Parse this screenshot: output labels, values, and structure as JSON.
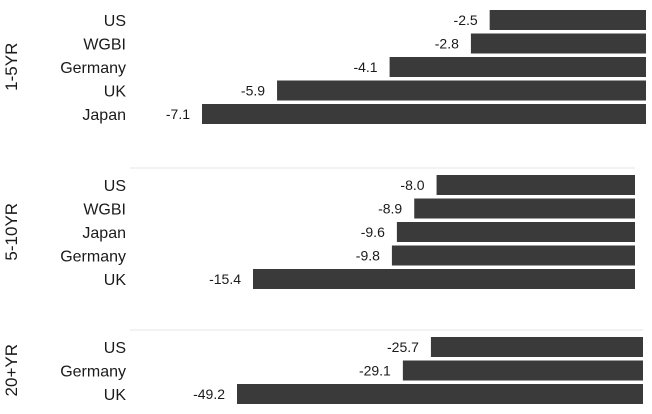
{
  "chart_data": {
    "type": "bar",
    "orientation": "horizontal",
    "groups": [
      {
        "label": "1-5YR",
        "categories": [
          "US",
          "WGBI",
          "Germany",
          "UK",
          "Japan"
        ],
        "values": [
          -2.5,
          -2.8,
          -4.1,
          -5.9,
          -7.1
        ],
        "value_labels": [
          "-2.5",
          "-2.8",
          "-4.1",
          "-5.9",
          "-7.1"
        ]
      },
      {
        "label": "5-10YR",
        "categories": [
          "US",
          "WGBI",
          "Japan",
          "Germany",
          "UK"
        ],
        "values": [
          -8.0,
          -8.9,
          -9.6,
          -9.8,
          -15.4
        ],
        "value_labels": [
          "-8.0",
          "-8.9",
          "-9.6",
          "-9.8",
          "-15.4"
        ]
      },
      {
        "label": "20+YR",
        "categories": [
          "US",
          "Germany",
          "UK"
        ],
        "values": [
          -25.7,
          -29.1,
          -49.2
        ],
        "value_labels": [
          "-25.7",
          "-29.1",
          "-49.2"
        ]
      }
    ],
    "bar_color": "#3a3a3a",
    "grid": false
  }
}
